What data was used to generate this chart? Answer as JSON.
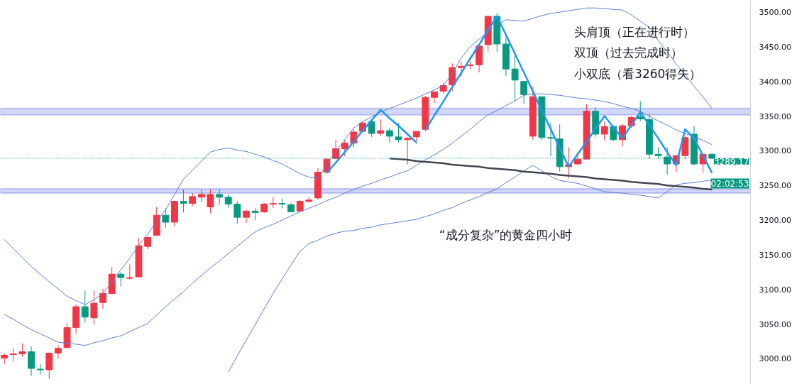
{
  "chart_data": {
    "type": "candlestick",
    "categories": [
      null,
      null,
      null,
      null,
      null,
      null,
      null,
      null,
      null,
      null,
      null,
      null,
      null,
      null,
      null,
      null,
      null,
      null,
      null,
      null,
      null,
      null,
      null,
      null,
      null,
      null,
      null,
      null,
      null,
      null,
      null,
      null,
      null,
      null,
      null,
      null,
      null,
      null,
      null,
      null,
      null,
      null,
      null,
      null,
      null,
      null,
      null,
      null,
      null,
      null,
      null,
      null,
      null,
      null,
      null,
      null,
      null,
      null,
      null,
      null,
      null,
      null,
      null,
      null,
      null,
      null,
      null,
      null,
      null,
      null,
      null,
      null,
      null,
      null,
      null,
      null,
      null,
      null,
      null,
      null
    ],
    "ohlc": [
      [
        3001,
        3008,
        2992,
        3005
      ],
      [
        3006,
        3015,
        2996,
        3007
      ],
      [
        3007,
        3022,
        3003,
        3010
      ],
      [
        3010,
        3018,
        2975,
        2986
      ],
      [
        2985,
        2992,
        2977,
        2984
      ],
      [
        2984,
        3009,
        2971,
        3008
      ],
      [
        3008,
        3020,
        3000,
        3015
      ],
      [
        3016,
        3052,
        3015,
        3045
      ],
      [
        3045,
        3078,
        3036,
        3075
      ],
      [
        3075,
        3098,
        3052,
        3060
      ],
      [
        3059,
        3099,
        3049,
        3080
      ],
      [
        3081,
        3101,
        3072,
        3094
      ],
      [
        3094,
        3132,
        3093,
        3122
      ],
      [
        3122,
        3125,
        3104,
        3117
      ],
      [
        3116,
        3136,
        3114,
        3117
      ],
      [
        3118,
        3174,
        3118,
        3163
      ],
      [
        3162,
        3175,
        3158,
        3175
      ],
      [
        3178,
        3219,
        3178,
        3207
      ],
      [
        3207,
        3217,
        3189,
        3197
      ],
      [
        3197,
        3228,
        3191,
        3227
      ],
      [
        3227,
        3244,
        3211,
        3224
      ],
      [
        3224,
        3239,
        3220,
        3234
      ],
      [
        3233,
        3244,
        3226,
        3237
      ],
      [
        3219,
        3244,
        3210,
        3237
      ],
      [
        3237,
        3244,
        3222,
        3233
      ],
      [
        3233,
        3237,
        3217,
        3223
      ],
      [
        3223,
        3227,
        3195,
        3204
      ],
      [
        3204,
        3216,
        3196,
        3213
      ],
      [
        3213,
        3217,
        3200,
        3211
      ],
      [
        3212,
        3225,
        3210,
        3223
      ],
      [
        3223,
        3233,
        3217,
        3224
      ],
      [
        3224,
        3231,
        3217,
        3223
      ],
      [
        3222,
        3225,
        3212,
        3212
      ],
      [
        3213,
        3229,
        3213,
        3227
      ],
      [
        3227,
        3233,
        3225,
        3229
      ],
      [
        3232,
        3275,
        3229,
        3269
      ],
      [
        3269,
        3290,
        3269,
        3288
      ],
      [
        3289,
        3316,
        3289,
        3303
      ],
      [
        3303,
        3316,
        3292,
        3311
      ],
      [
        3311,
        3331,
        3305,
        3327
      ],
      [
        3328,
        3343,
        3327,
        3340
      ],
      [
        3342,
        3345,
        3320,
        3325
      ],
      [
        3325,
        3345,
        3321,
        3329
      ],
      [
        3329,
        3333,
        3312,
        3321
      ],
      [
        3320,
        3340,
        3312,
        3316
      ],
      [
        3316,
        3320,
        3280,
        3318
      ],
      [
        3320,
        3328,
        3310,
        3328
      ],
      [
        3331,
        3379,
        3328,
        3377
      ],
      [
        3377,
        3385,
        3369,
        3385
      ],
      [
        3386,
        3398,
        3382,
        3394
      ],
      [
        3395,
        3426,
        3386,
        3420
      ],
      [
        3420,
        3429,
        3407,
        3422
      ],
      [
        3423,
        3429,
        3417,
        3424
      ],
      [
        3424,
        3453,
        3413,
        3451
      ],
      [
        3453,
        3494,
        3443,
        3494
      ],
      [
        3494,
        3499,
        3443,
        3454
      ],
      [
        3454,
        3466,
        3408,
        3418
      ],
      [
        3418,
        3439,
        3371,
        3402
      ],
      [
        3400,
        3400,
        3367,
        3381
      ],
      [
        3321,
        3392,
        3316,
        3378
      ],
      [
        3378,
        3378,
        3316,
        3319
      ],
      [
        3319,
        3340,
        3292,
        3318
      ],
      [
        3317,
        3338,
        3270,
        3277
      ],
      [
        3277,
        3305,
        3260,
        3280
      ],
      [
        3281,
        3294,
        3279,
        3288
      ],
      [
        3288,
        3367,
        3288,
        3357
      ],
      [
        3357,
        3363,
        3320,
        3324
      ],
      [
        3324,
        3342,
        3315,
        3335
      ],
      [
        3335,
        3336,
        3314,
        3316
      ],
      [
        3316,
        3339,
        3306,
        3336
      ],
      [
        3336,
        3350,
        3333,
        3348
      ],
      [
        3349,
        3371,
        3343,
        3346
      ],
      [
        3345,
        3353,
        3288,
        3295
      ],
      [
        3295,
        3305,
        3288,
        3293
      ],
      [
        3291,
        3305,
        3265,
        3281
      ],
      [
        3281,
        3293,
        3269,
        3293
      ],
      [
        3293,
        3322,
        3288,
        3319
      ],
      [
        3324,
        3336,
        3279,
        3281
      ],
      [
        3281,
        3295,
        3268,
        3295
      ],
      [
        3295,
        3296,
        3288,
        3289.17
      ]
    ],
    "colors": [
      "#f23645",
      "#f23645",
      "#f23645",
      "#089981",
      "#089981",
      "#f23645",
      "#f23645",
      "#f23645",
      "#f23645",
      "#089981",
      "#f23645",
      "#f23645",
      "#f23645",
      "#089981",
      "#f23645",
      "#f23645",
      "#f23645",
      "#f23645",
      "#089981",
      "#f23645",
      "#089981",
      "#f23645",
      "#f23645",
      "#f23645",
      "#089981",
      "#089981",
      "#089981",
      "#f23645",
      "#089981",
      "#f23645",
      "#f23645",
      "#089981",
      "#089981",
      "#f23645",
      "#f23645",
      "#f23645",
      "#f23645",
      "#f23645",
      "#f23645",
      "#f23645",
      "#f23645",
      "#089981",
      "#f23645",
      "#089981",
      "#089981",
      "#f23645",
      "#f23645",
      "#f23645",
      "#f23645",
      "#f23645",
      "#f23645",
      "#f23645",
      "#f23645",
      "#f23645",
      "#f23645",
      "#089981",
      "#089981",
      "#089981",
      "#089981",
      "#f23645",
      "#089981",
      "#089981",
      "#089981",
      "#f23645",
      "#f23645",
      "#f23645",
      "#089981",
      "#f23645",
      "#089981",
      "#f23645",
      "#f23645",
      "#089981",
      "#089981",
      "#089981",
      "#089981",
      "#f23645",
      "#f23645",
      "#089981",
      "#f23645",
      "#089981"
    ],
    "series": [
      {
        "type": "line",
        "color": "#5b7fd6",
        "values": [
          3172,
          3159,
          3146,
          3133,
          3122,
          3111,
          3101,
          3090,
          3084,
          3078,
          3085,
          3094,
          3111,
          3128,
          3145,
          3163,
          3180,
          3198,
          3215,
          3237,
          3259,
          3272,
          3285,
          3298,
          3302,
          3304,
          3301,
          3299,
          3295,
          3291,
          3286,
          3281,
          3274,
          3267,
          3262,
          3260,
          3280,
          3299,
          3316,
          3333,
          3342,
          3349,
          3356,
          3361,
          3366,
          3371,
          3376,
          3382,
          3388,
          3394,
          3411,
          3434,
          3450,
          3461,
          3472,
          3482,
          3489,
          3488,
          3487,
          3491,
          3495,
          3498,
          3500,
          3502,
          3504,
          3506,
          3506,
          3505,
          3504,
          3503,
          3496,
          3487,
          3478,
          3459,
          3443,
          3425,
          3410,
          3393,
          3378,
          3361
        ]
      },
      {
        "type": "line",
        "color": "#5b7fd6",
        "values": [
          3064,
          3057,
          3049,
          3042,
          3036,
          3030,
          3024,
          3022,
          3021,
          3019,
          3023,
          3026,
          3030,
          3033,
          3039,
          3045,
          3051,
          3063,
          3075,
          3086,
          3097,
          3109,
          3120,
          3131,
          3141,
          3152,
          3162,
          3173,
          3183,
          3189,
          3194,
          3200,
          3206,
          3212,
          3217,
          3222,
          3228,
          3233,
          3239,
          3244,
          3249,
          3253,
          3258,
          3262,
          3267,
          3271,
          3279,
          3287,
          3294,
          3302,
          3311,
          3321,
          3331,
          3342,
          3352,
          3358,
          3365,
          3372,
          3380,
          3382,
          3382,
          3381,
          3380,
          3378,
          3376,
          3375,
          3373,
          3371,
          3368,
          3364,
          3361,
          3357,
          3350,
          3343,
          3337,
          3330,
          3325,
          3320,
          3315,
          3309
        ]
      },
      {
        "type": "line",
        "color": "#5b7fd6",
        "values": [
          null,
          null,
          null,
          null,
          null,
          null,
          null,
          null,
          null,
          null,
          null,
          null,
          null,
          null,
          null,
          null,
          null,
          null,
          null,
          null,
          null,
          null,
          null,
          null,
          null,
          2981,
          3004,
          3027,
          3049,
          3072,
          3094,
          3115,
          3135,
          3155,
          3166,
          3171,
          3177,
          3181,
          3184,
          3185,
          3188,
          3190,
          3193,
          3195,
          3197,
          3199,
          3201,
          3205,
          3209,
          3214,
          3218,
          3224,
          3229,
          3234,
          3240,
          3245,
          3254,
          3262,
          3271,
          3279,
          3271,
          3263,
          3257,
          3255,
          3253,
          3249,
          3245,
          3241,
          3240,
          3239,
          3237,
          3236,
          3234,
          3232,
          3241,
          3251,
          3253,
          3254,
          3256,
          3258
        ]
      },
      {
        "type": "line",
        "color": "#2196f3",
        "values": [
          null,
          null,
          null,
          null,
          null,
          null,
          null,
          null,
          null,
          null,
          null,
          null,
          null,
          null,
          null,
          null,
          null,
          null,
          null,
          null,
          null,
          null,
          null,
          null,
          null,
          null,
          null,
          null,
          null,
          null,
          null,
          null,
          null,
          null,
          null,
          null,
          3268,
          3283,
          3298,
          3313,
          3329,
          3344,
          3359,
          3347,
          3336,
          3324,
          3312,
          null,
          null,
          null,
          null,
          null,
          null,
          null,
          null,
          null,
          null,
          null,
          null,
          null,
          null,
          null,
          null,
          null,
          null,
          null,
          null,
          null,
          null,
          null,
          null,
          null,
          null,
          null,
          null,
          null,
          null,
          null,
          null,
          null
        ]
      },
      {
        "type": "line",
        "color": "#2196f3",
        "values": [
          null,
          null,
          null,
          null,
          null,
          null,
          null,
          null,
          null,
          null,
          null,
          null,
          null,
          null,
          null,
          null,
          null,
          null,
          null,
          null,
          null,
          null,
          null,
          null,
          null,
          null,
          null,
          null,
          null,
          null,
          null,
          null,
          null,
          null,
          null,
          null,
          null,
          null,
          null,
          null,
          null,
          null,
          null,
          null,
          null,
          null,
          null,
          3330,
          3351,
          3371,
          3392,
          3412,
          3433,
          3453,
          3474,
          3494,
          3467,
          3440,
          3413,
          3386,
          3358,
          3331,
          3304,
          3277,
          null,
          null,
          null,
          null,
          null,
          null,
          null,
          null,
          null,
          null,
          null,
          null,
          null,
          null,
          null,
          null
        ]
      },
      {
        "type": "line",
        "color": "#2196f3",
        "values": [
          null,
          null,
          null,
          null,
          null,
          null,
          null,
          null,
          null,
          null,
          null,
          null,
          null,
          null,
          null,
          null,
          null,
          null,
          null,
          null,
          null,
          null,
          null,
          null,
          null,
          null,
          null,
          null,
          null,
          null,
          null,
          null,
          null,
          null,
          null,
          null,
          null,
          null,
          null,
          null,
          null,
          null,
          null,
          null,
          null,
          null,
          null,
          null,
          null,
          null,
          null,
          null,
          null,
          null,
          null,
          null,
          null,
          null,
          null,
          null,
          null,
          null,
          null,
          3277,
          3295,
          3313,
          3332,
          3350,
          3334,
          3318,
          3337,
          3356,
          3337,
          3318,
          3298,
          3279,
          3331,
          3318,
          3293,
          3268
        ]
      },
      {
        "type": "line",
        "color": "#434651",
        "values": [
          null,
          null,
          null,
          null,
          null,
          null,
          null,
          null,
          null,
          null,
          null,
          null,
          null,
          null,
          null,
          null,
          null,
          null,
          null,
          null,
          null,
          null,
          null,
          null,
          null,
          null,
          null,
          null,
          null,
          null,
          null,
          null,
          null,
          null,
          null,
          null,
          null,
          null,
          null,
          null,
          null,
          null,
          null,
          3289,
          3288,
          3287,
          3285,
          3284,
          3283,
          3282,
          3280,
          3279,
          3278,
          3277,
          3275,
          3274,
          3273,
          3272,
          3270,
          3269,
          3268,
          3267,
          3265,
          3264,
          3263,
          3262,
          3260,
          3259,
          3258,
          3257,
          3255,
          3254,
          3253,
          3252,
          3250,
          3249,
          3248,
          3247,
          3245,
          3244
        ]
      }
    ],
    "ylim": [
      2963,
      3517
    ],
    "yticks": [
      {
        "value": 3000,
        "label": "3000.00"
      },
      {
        "value": 3050,
        "label": "3050.00"
      },
      {
        "value": 3100,
        "label": "3100.00"
      },
      {
        "value": 3150,
        "label": "3150.00"
      },
      {
        "value": 3200,
        "label": "3200.00"
      },
      {
        "value": 3250,
        "label": "3250.00"
      },
      {
        "value": 3300,
        "label": "3300.00"
      },
      {
        "value": 3350,
        "label": "3350.00"
      },
      {
        "value": 3400,
        "label": "3400.00"
      },
      {
        "value": 3450,
        "label": "3450.00"
      },
      {
        "value": 3500,
        "label": "3500.00"
      }
    ],
    "tick_labels": "y",
    "bands": [
      {
        "axis": "y",
        "from": 3352,
        "to": 3361,
        "color": "#c5cdf6"
      },
      {
        "axis": "y",
        "from": 3239,
        "to": 3245,
        "color": "#c5cdf6"
      }
    ],
    "ref_lines": [
      {
        "axis": "y",
        "value": 3289.17,
        "label": "3289.17",
        "color": "#089981",
        "line_style": "dotted"
      }
    ],
    "annotations": [
      "头肩顶（正在进行时）",
      "双顶（过去完成时）",
      "小双底（看3260得失）",
      "“成分复杂”的黄金四小时",
      "02:02:53"
    ]
  }
}
